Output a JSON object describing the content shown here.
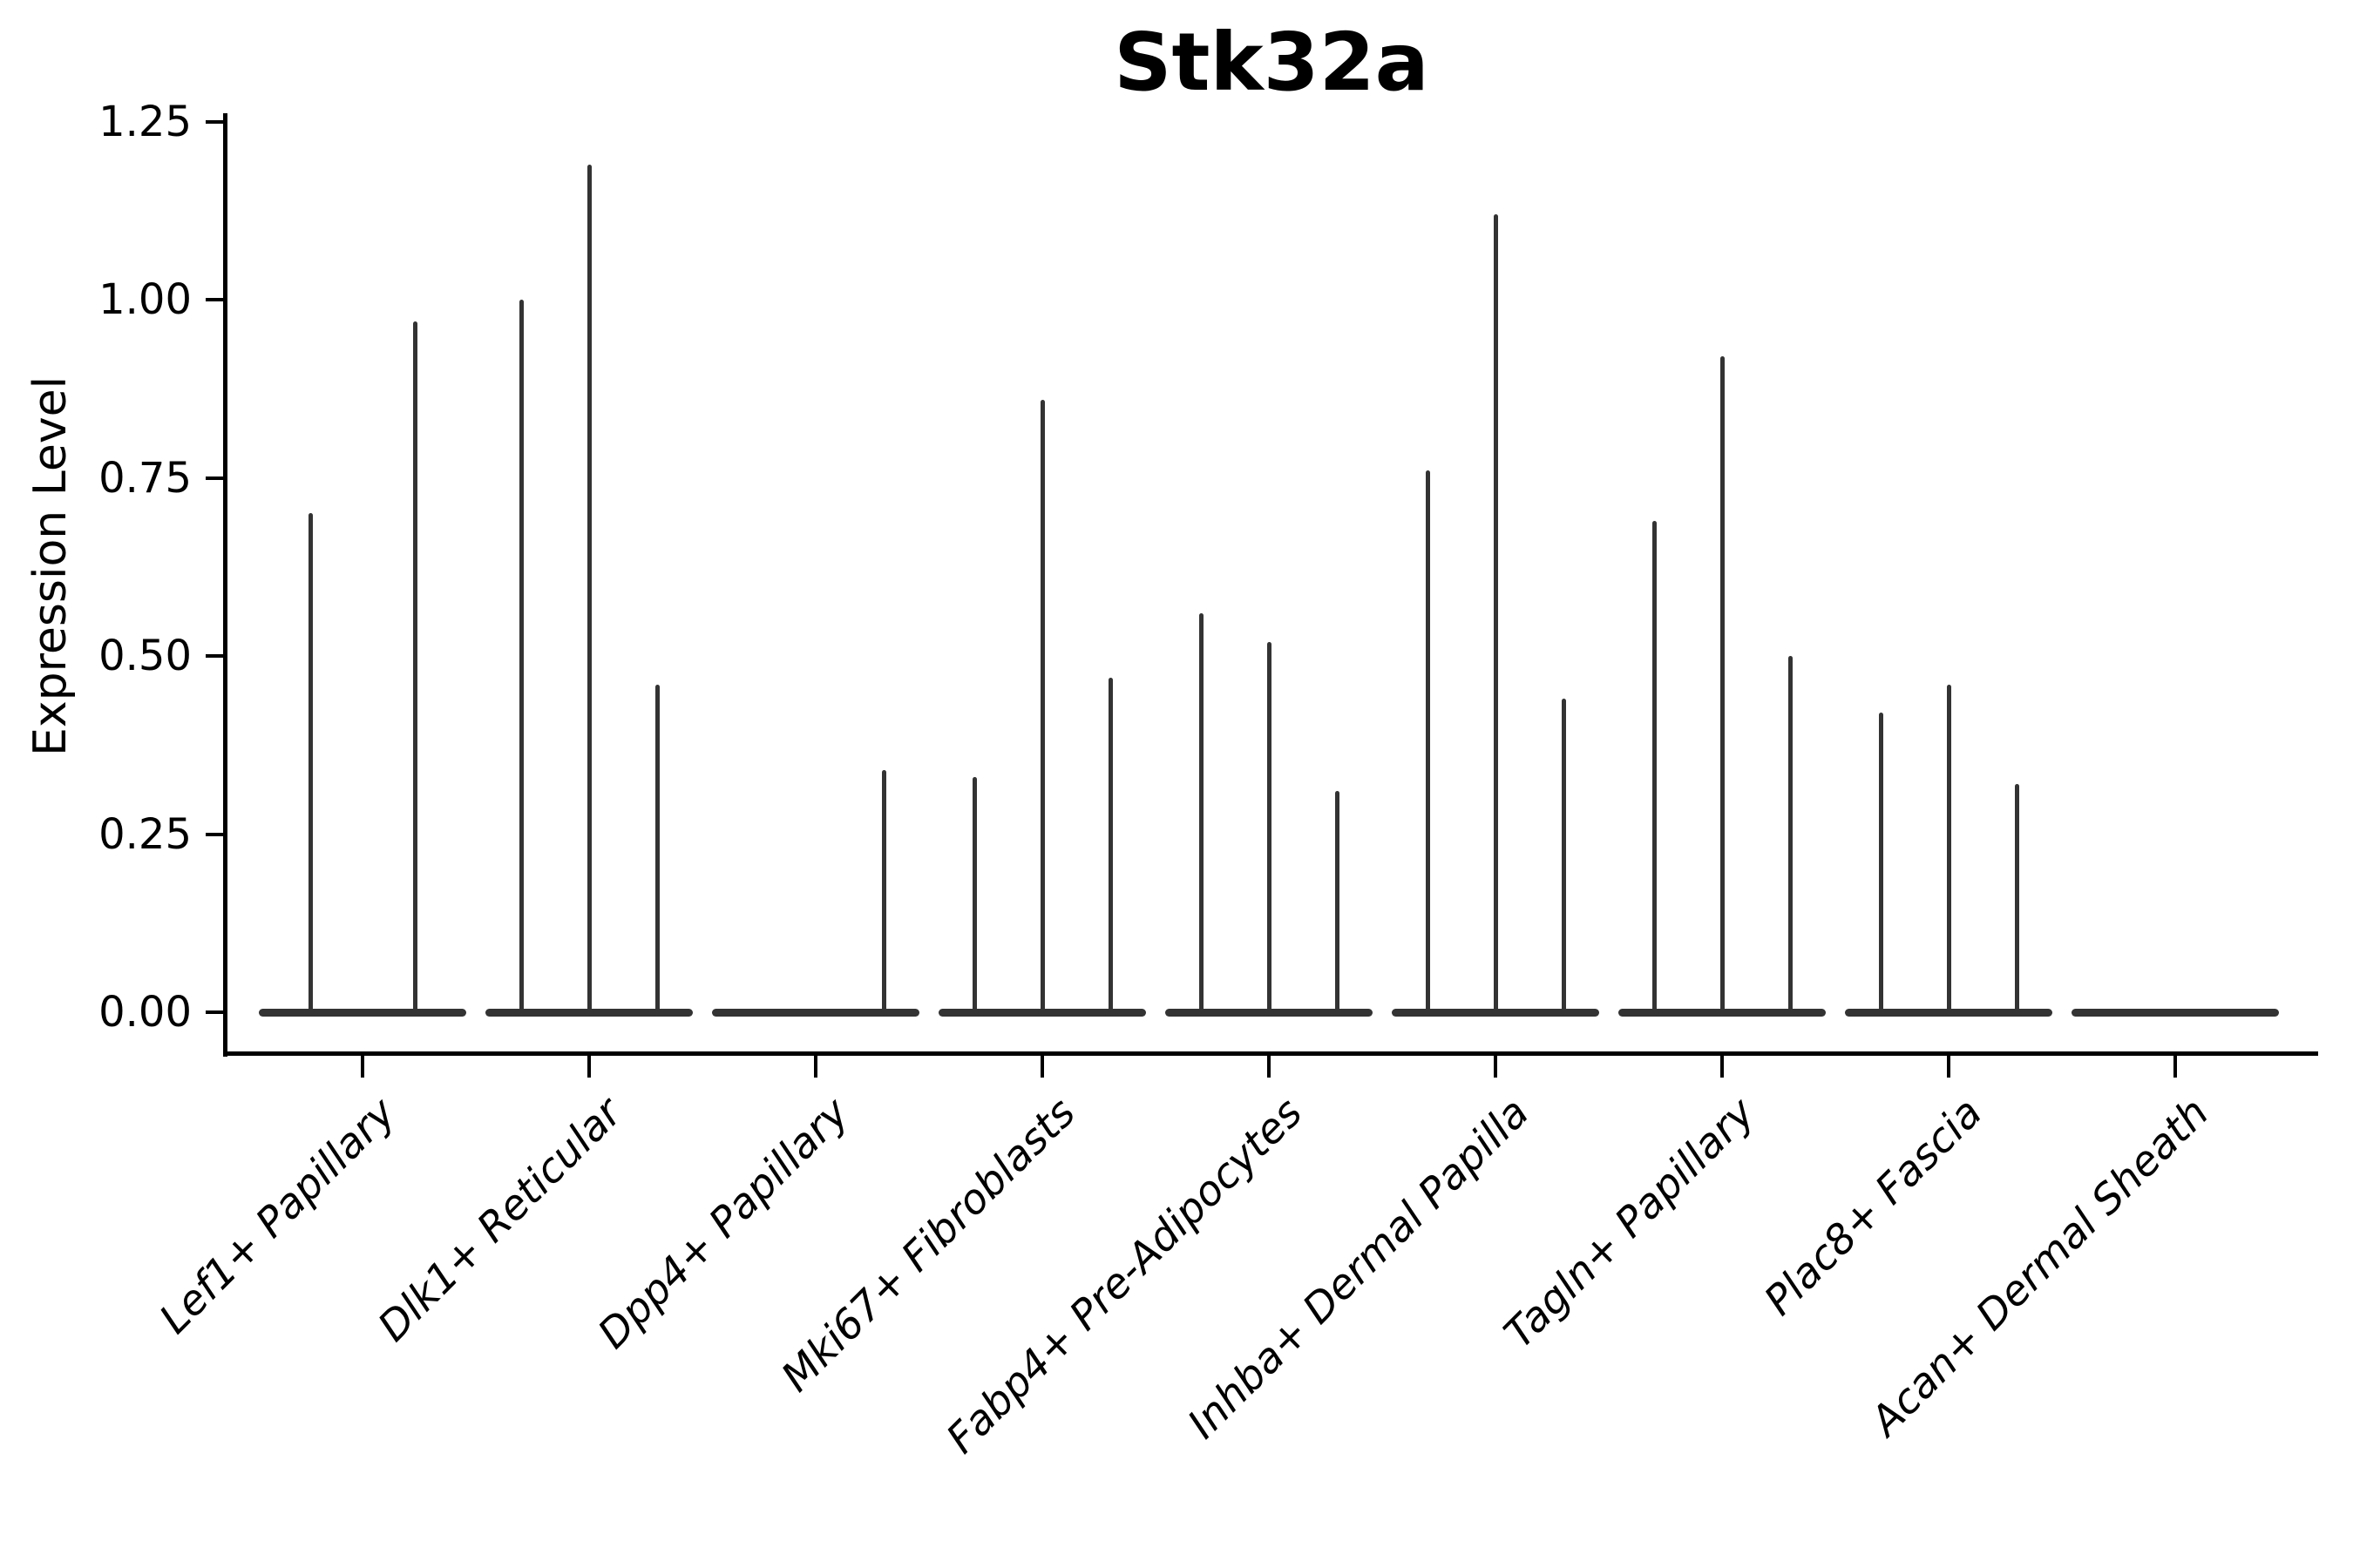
{
  "figure": {
    "background": "#ffffff"
  },
  "chart_data": {
    "type": "violin",
    "title": "Stk32a",
    "xlabel": "",
    "ylabel": "Expression Level",
    "ylim": [
      0,
      1.25
    ],
    "yticks": [
      "0.00",
      "0.25",
      "0.50",
      "0.75",
      "1.00",
      "1.25"
    ],
    "grid": false,
    "legend": null,
    "ink_color": "#333333",
    "axis_color": "#000000",
    "description": "Needle-thin split violin plot of Stk32a expression per fibroblast cell-type cluster; most cells at zero form flat bases with thin density spikes at expressing cells",
    "categories": [
      {
        "label": "Lef1+ Papillary",
        "violins": [
          {
            "offset": -0.25,
            "value": 0.7
          },
          {
            "offset": 0.25,
            "value": 0.97
          }
        ]
      },
      {
        "label": "Dlk1+ Reticular",
        "violins": [
          {
            "offset": -0.325,
            "value": 1.0
          },
          {
            "offset": 0,
            "value": 1.19
          },
          {
            "offset": 0.325,
            "value": 0.46
          }
        ]
      },
      {
        "label": "Dpp4+ Papillary",
        "violins": [
          {
            "offset": -0.325,
            "value": 0
          },
          {
            "offset": 0,
            "value": 0
          },
          {
            "offset": 0.325,
            "value": 0.34
          }
        ]
      },
      {
        "label": "Mki67+ Fibroblasts",
        "violins": [
          {
            "offset": -0.325,
            "value": 0.33
          },
          {
            "offset": 0,
            "value": 0.86
          },
          {
            "offset": 0.325,
            "value": 0.47
          }
        ]
      },
      {
        "label": "Fabp4+ Pre-Adipocytes",
        "violins": [
          {
            "offset": -0.325,
            "value": 0.56
          },
          {
            "offset": 0,
            "value": 0.52
          },
          {
            "offset": 0.325,
            "value": 0.31
          }
        ]
      },
      {
        "label": "Inhba+ Dermal Papilla",
        "violins": [
          {
            "offset": -0.325,
            "value": 0.76
          },
          {
            "offset": 0,
            "value": 1.12
          },
          {
            "offset": 0.325,
            "value": 0.44
          }
        ]
      },
      {
        "label": "Tagln+ Papillary",
        "violins": [
          {
            "offset": -0.325,
            "value": 0.69
          },
          {
            "offset": 0,
            "value": 0.92
          },
          {
            "offset": 0.325,
            "value": 0.5
          }
        ]
      },
      {
        "label": "Plac8+ Fascia",
        "violins": [
          {
            "offset": -0.325,
            "value": 0.42
          },
          {
            "offset": 0,
            "value": 0.46
          },
          {
            "offset": 0.325,
            "value": 0.32
          }
        ]
      },
      {
        "label": "Acan+ Dermal Sheath",
        "violins": [
          {
            "offset": -0.325,
            "value": 0
          },
          {
            "offset": 0,
            "value": 0
          },
          {
            "offset": 0.325,
            "value": 0
          }
        ]
      }
    ]
  }
}
